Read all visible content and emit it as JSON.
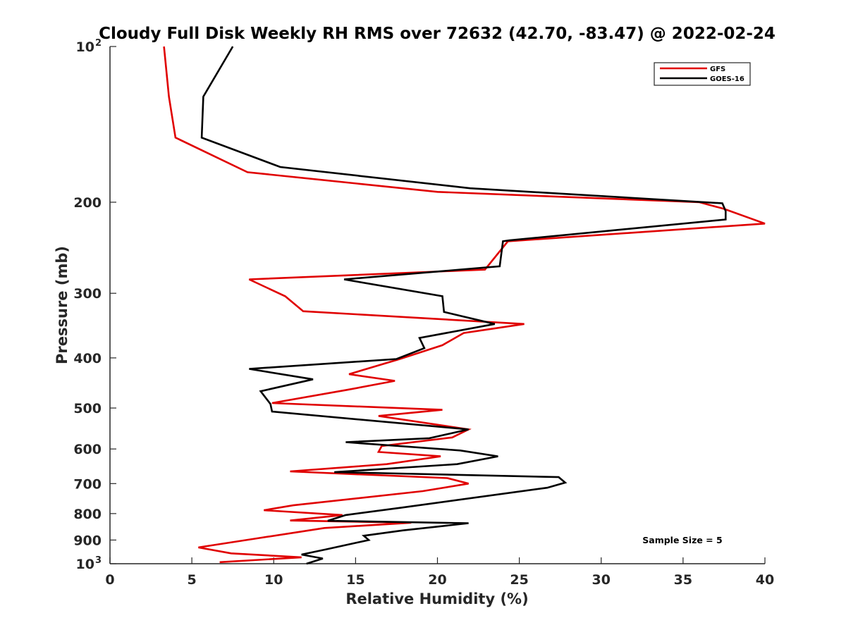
{
  "chart_data": {
    "type": "line",
    "title": "Cloudy Full Disk Weekly RH RMS over 72632 (42.70, -83.47) @ 2022-02-24",
    "xlabel": "Relative Humidity (%)",
    "ylabel": "Pressure (mb)",
    "xlim": [
      0,
      40
    ],
    "ylim": [
      100,
      1000
    ],
    "y_scale": "log",
    "y_reversed": true,
    "grid": false,
    "legend_position": "top-right",
    "x_ticks": [
      "0",
      "5",
      "10",
      "15",
      "20",
      "25",
      "30",
      "35",
      "40"
    ],
    "y_ticks": [
      {
        "value": 100,
        "base": "10",
        "exp": "2"
      },
      {
        "value": 200,
        "label": "200"
      },
      {
        "value": 300,
        "label": "300"
      },
      {
        "value": 400,
        "label": "400"
      },
      {
        "value": 500,
        "label": "500"
      },
      {
        "value": 600,
        "label": "600"
      },
      {
        "value": 700,
        "label": "700"
      },
      {
        "value": 800,
        "label": "800"
      },
      {
        "value": 900,
        "label": "900"
      },
      {
        "value": 1000,
        "base": "10",
        "exp": "3"
      }
    ],
    "annotation": "Sample Size = 5",
    "series": [
      {
        "name": "GFS",
        "color": "#e00000",
        "points": [
          [
            3.3,
            100
          ],
          [
            3.6,
            125
          ],
          [
            4.0,
            150
          ],
          [
            8.4,
            175
          ],
          [
            20.0,
            191
          ],
          [
            36.0,
            200
          ],
          [
            37.5,
            206
          ],
          [
            40.0,
            220
          ],
          [
            24.3,
            238
          ],
          [
            22.9,
            270
          ],
          [
            8.5,
            282
          ],
          [
            10.7,
            304
          ],
          [
            11.8,
            325
          ],
          [
            25.3,
            344
          ],
          [
            21.6,
            358
          ],
          [
            20.3,
            378
          ],
          [
            17.7,
            402
          ],
          [
            14.6,
            430
          ],
          [
            17.4,
            443
          ],
          [
            14.5,
            461
          ],
          [
            9.9,
            489
          ],
          [
            20.3,
            504
          ],
          [
            16.4,
            518
          ],
          [
            21.9,
            550
          ],
          [
            20.9,
            570
          ],
          [
            16.6,
            592
          ],
          [
            16.4,
            608
          ],
          [
            20.2,
            620
          ],
          [
            16.9,
            642
          ],
          [
            11.0,
            663
          ],
          [
            20.6,
            683
          ],
          [
            21.9,
            700
          ],
          [
            19.1,
            724
          ],
          [
            11.2,
            771
          ],
          [
            9.4,
            788
          ],
          [
            14.2,
            805
          ],
          [
            11.0,
            825
          ],
          [
            18.4,
            833
          ],
          [
            13.1,
            853
          ],
          [
            5.4,
            930
          ],
          [
            7.4,
            955
          ],
          [
            11.7,
            972
          ],
          [
            6.7,
            993
          ]
        ]
      },
      {
        "name": "GOES-16",
        "color": "#000000",
        "points": [
          [
            7.5,
            100
          ],
          [
            5.7,
            125
          ],
          [
            5.6,
            150
          ],
          [
            10.4,
            171
          ],
          [
            22.0,
            188
          ],
          [
            37.4,
            201
          ],
          [
            37.6,
            208
          ],
          [
            37.6,
            216
          ],
          [
            24.4,
            237
          ],
          [
            24.0,
            238
          ],
          [
            23.8,
            266
          ],
          [
            14.3,
            282
          ],
          [
            20.3,
            304
          ],
          [
            20.4,
            326
          ],
          [
            23.5,
            344
          ],
          [
            18.9,
            366
          ],
          [
            19.2,
            383
          ],
          [
            17.5,
            402
          ],
          [
            8.5,
            420
          ],
          [
            12.4,
            440
          ],
          [
            9.2,
            464
          ],
          [
            9.8,
            491
          ],
          [
            9.9,
            508
          ],
          [
            21.9,
            550
          ],
          [
            19.5,
            572
          ],
          [
            14.4,
            582
          ],
          [
            21.4,
            604
          ],
          [
            23.7,
            620
          ],
          [
            21.2,
            642
          ],
          [
            13.7,
            665
          ],
          [
            27.4,
            680
          ],
          [
            27.8,
            697
          ],
          [
            26.7,
            713
          ],
          [
            17.8,
            779
          ],
          [
            14.4,
            805
          ],
          [
            13.3,
            826
          ],
          [
            21.9,
            835
          ],
          [
            17.9,
            862
          ],
          [
            15.5,
            883
          ],
          [
            15.8,
            900
          ],
          [
            13.2,
            938
          ],
          [
            11.7,
            960
          ],
          [
            13.0,
            977
          ],
          [
            12.0,
            1000
          ]
        ]
      }
    ]
  }
}
